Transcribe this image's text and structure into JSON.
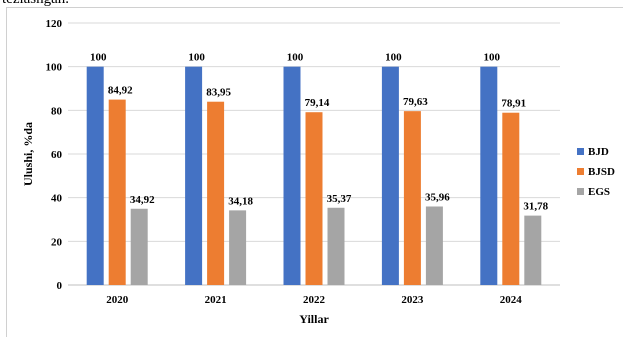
{
  "header": {
    "text": "tezlashgan."
  },
  "chart_data": {
    "type": "bar",
    "categories": [
      "2020",
      "2021",
      "2022",
      "2023",
      "2024"
    ],
    "series": [
      {
        "name": "BJD",
        "color": "#4472C4",
        "values": [
          100,
          100,
          100,
          100,
          100
        ],
        "labels": [
          "100",
          "100",
          "100",
          "100",
          "100"
        ]
      },
      {
        "name": "BJSD",
        "color": "#ED7D31",
        "values": [
          84.92,
          83.95,
          79.14,
          79.63,
          78.91
        ],
        "labels": [
          "84,92",
          "83,95",
          "79,14",
          "79,63",
          "78,91"
        ]
      },
      {
        "name": "EGS",
        "color": "#A5A5A5",
        "values": [
          34.92,
          34.18,
          35.37,
          35.96,
          31.78
        ],
        "labels": [
          "34,92",
          "34,18",
          "35,37",
          "35,96",
          "31,78"
        ]
      }
    ],
    "title": "",
    "xlabel": "Yillar",
    "ylabel": "Ulushi, %da",
    "ylim": [
      0,
      120
    ],
    "yticks": [
      "0",
      "20",
      "40",
      "60",
      "80",
      "100",
      "120"
    ],
    "grid": true,
    "legend": "right"
  }
}
